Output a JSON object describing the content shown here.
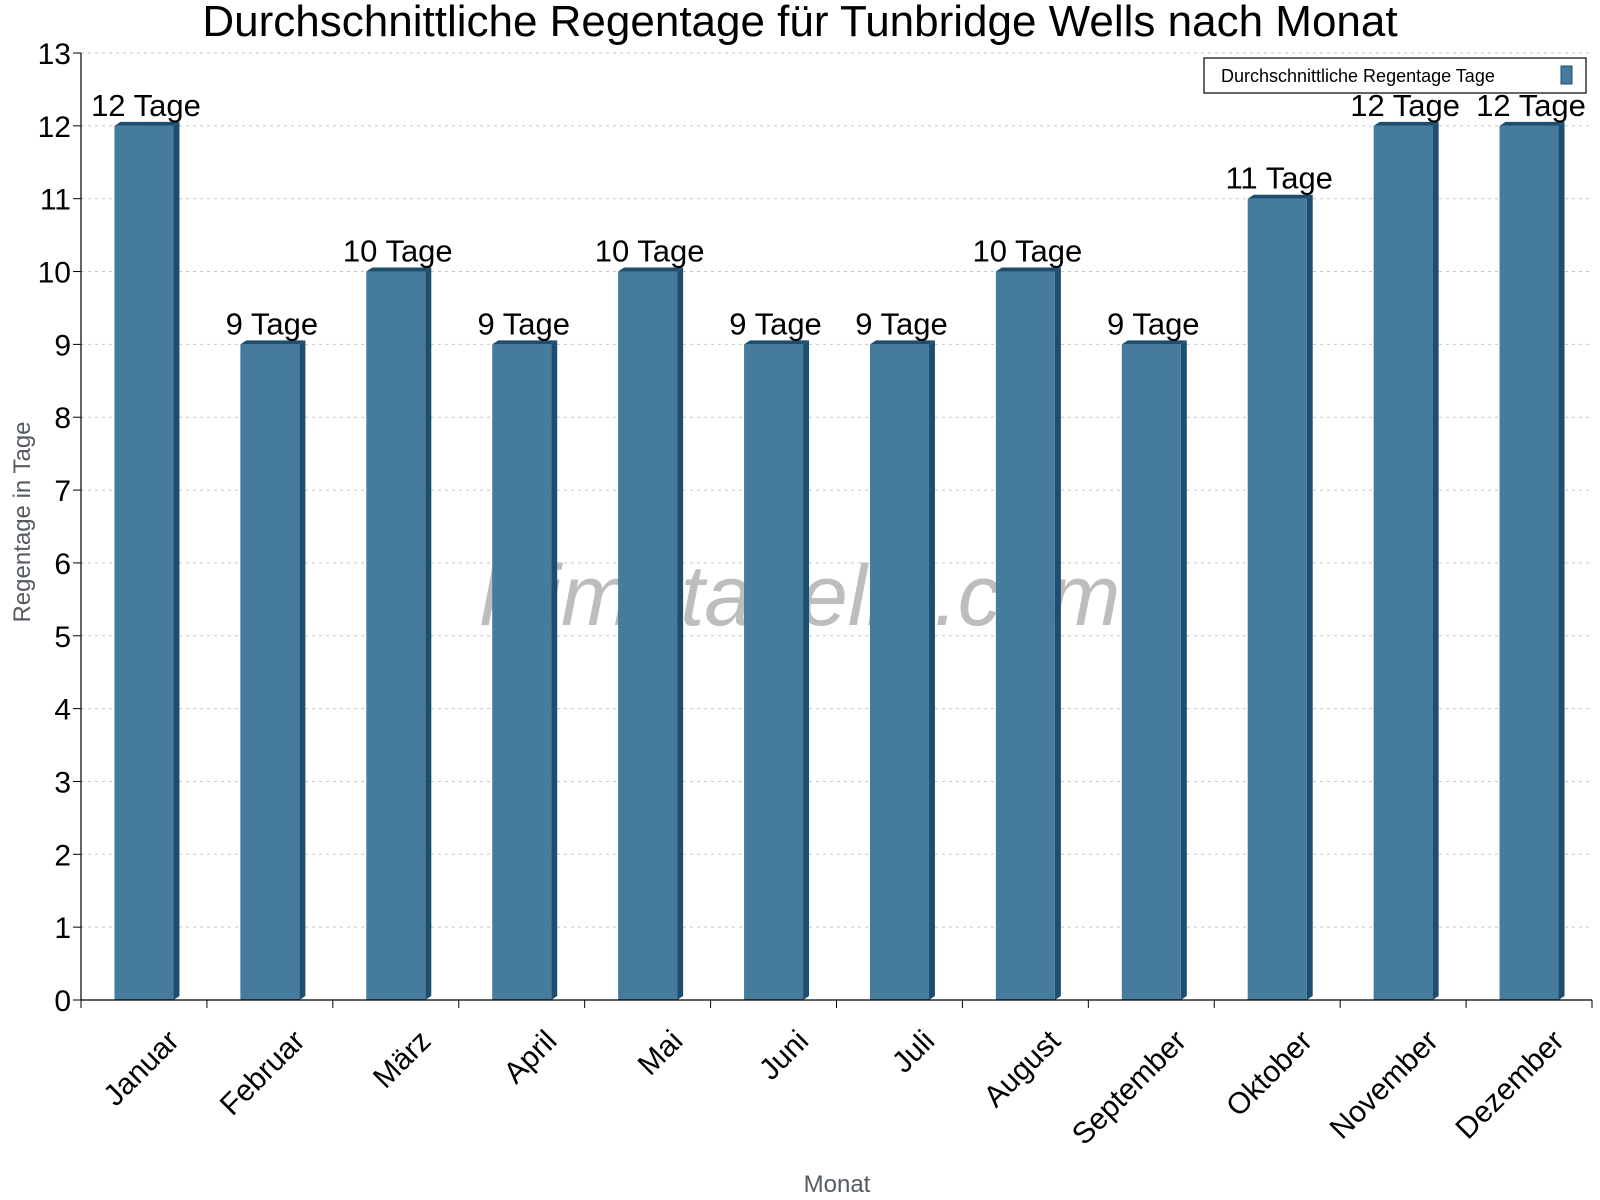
{
  "chart_data": {
    "type": "bar",
    "title": "Durchschnittliche Regentage für Tunbridge Wells nach Monat",
    "xlabel": "Monat",
    "ylabel": "Regentage in Tage",
    "categories": [
      "Januar",
      "Februar",
      "März",
      "April",
      "Mai",
      "Juni",
      "Juli",
      "August",
      "September",
      "Oktober",
      "November",
      "Dezember"
    ],
    "series": [
      {
        "name": "Durchschnittliche Regentage Tage",
        "values": [
          12,
          9,
          10,
          9,
          10,
          9,
          9,
          10,
          9,
          11,
          12,
          12
        ],
        "data_labels": [
          "12 Tage",
          "9 Tage",
          "10 Tage",
          "9 Tage",
          "10 Tage",
          "9 Tage",
          "9 Tage",
          "10 Tage",
          "9 Tage",
          "11 Tage",
          "12 Tage",
          "12 Tage"
        ]
      }
    ],
    "ylim": [
      0,
      13
    ],
    "yticks": [
      0,
      1,
      2,
      3,
      4,
      5,
      6,
      7,
      8,
      9,
      10,
      11,
      12,
      13
    ],
    "grid": true,
    "legend_position": "top-right",
    "bar_color": "#457b9d",
    "bar_side_color": "#1d4e6f",
    "watermark": "klimatabelle.com"
  }
}
